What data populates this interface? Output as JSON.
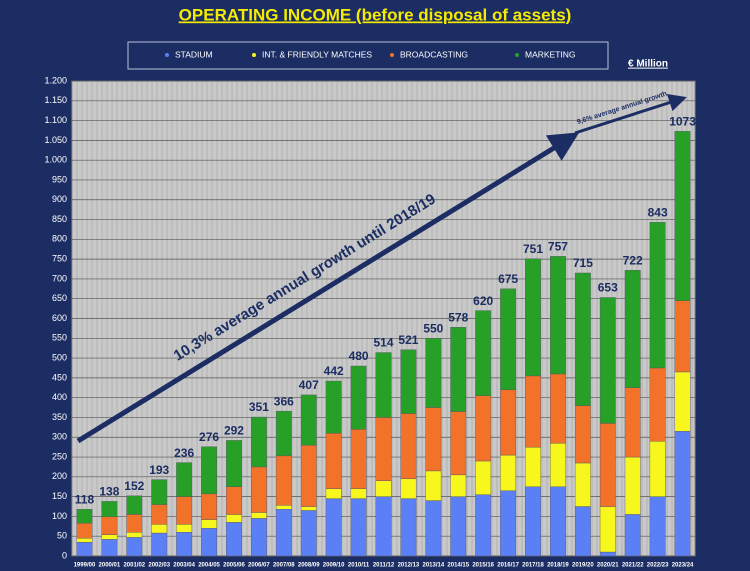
{
  "chart_data": {
    "type": "stacked_bar",
    "title": "OPERATING INCOME (before disposal of assets)",
    "unit_label": "€ Million",
    "annotations": [
      "10,3% average annual growth until 2018/19",
      "9,6% average annual growth"
    ],
    "categories": [
      "1999/00",
      "2000/01",
      "2001/02",
      "2002/03",
      "2003/04",
      "2004/05",
      "2005/06",
      "2006/07",
      "2007/08",
      "2008/09",
      "2009/10",
      "2010/11",
      "2011/12",
      "2012/13",
      "2013/14",
      "2014/15",
      "2015/16",
      "2016/17",
      "2017/18",
      "2018/19",
      "2019/20",
      "2020/21",
      "2021/22",
      "2022/23",
      "2023/24"
    ],
    "series": [
      {
        "name": "STADIUM",
        "color": "#5b7ff5",
        "values": [
          35,
          42,
          47,
          58,
          60,
          70,
          85,
          95,
          118,
          115,
          145,
          145,
          150,
          145,
          140,
          150,
          155,
          165,
          175,
          175,
          125,
          10,
          105,
          150,
          315
        ]
      },
      {
        "name": "INT. & FRIENDLY MATCHES",
        "color": "#f7f71e",
        "values": [
          10,
          12,
          13,
          22,
          20,
          22,
          20,
          15,
          10,
          10,
          25,
          25,
          40,
          50,
          75,
          55,
          85,
          90,
          100,
          110,
          110,
          115,
          145,
          140,
          150
        ]
      },
      {
        "name": "BROADCASTING",
        "color": "#f2722a",
        "values": [
          38,
          45,
          45,
          50,
          70,
          65,
          70,
          115,
          125,
          155,
          140,
          150,
          160,
          165,
          160,
          160,
          165,
          165,
          180,
          175,
          145,
          210,
          175,
          185,
          180
        ]
      },
      {
        "name": "MARKETING",
        "color": "#27a027",
        "values": [
          35,
          39,
          47,
          63,
          86,
          119,
          117,
          126,
          113,
          127,
          132,
          160,
          164,
          161,
          175,
          213,
          215,
          255,
          296,
          297,
          335,
          318,
          297,
          368,
          428
        ]
      }
    ],
    "totals": [
      118,
      138,
      152,
      193,
      236,
      276,
      292,
      351,
      366,
      407,
      442,
      480,
      514,
      521,
      550,
      578,
      620,
      675,
      751,
      757,
      715,
      653,
      722,
      843,
      1073
    ],
    "ylim": [
      0,
      1200
    ],
    "yticks": [
      0,
      50,
      100,
      150,
      200,
      250,
      300,
      350,
      400,
      450,
      500,
      550,
      600,
      650,
      700,
      750,
      800,
      850,
      900,
      950,
      {
        "value": 1000,
        "label": "1.000"
      },
      {
        "value": 1050,
        "label": "1.050"
      },
      {
        "value": 1100,
        "label": "1.100"
      },
      {
        "value": 1150,
        "label": "1.150"
      },
      {
        "value": 1200,
        "label": "1.200"
      }
    ],
    "grid": true
  }
}
